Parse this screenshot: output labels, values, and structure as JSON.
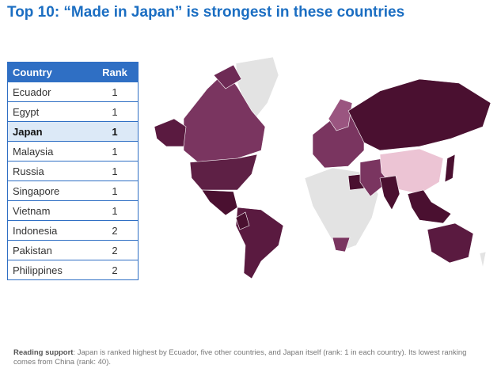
{
  "title": "Top 10: “Made in Japan” is strongest in these countries",
  "table": {
    "header": [
      "Country",
      "Rank"
    ],
    "rows": [
      [
        "Ecuador",
        1
      ],
      [
        "Egypt",
        1
      ],
      [
        "Japan",
        1
      ],
      [
        "Malaysia",
        1
      ],
      [
        "Russia",
        1
      ],
      [
        "Singapore",
        1
      ],
      [
        "Vietnam",
        1
      ],
      [
        "Indonesia",
        2
      ],
      [
        "Pakistan",
        2
      ],
      [
        "Philippines",
        2
      ]
    ],
    "highlight_row": 2
  },
  "note": {
    "label": "Reading support",
    "text": ": Japan is ranked highest by Ecuador, five other countries, and Japan itself (rank: 1 in each country). Its lowest ranking comes from China (rank: 40)."
  }
}
